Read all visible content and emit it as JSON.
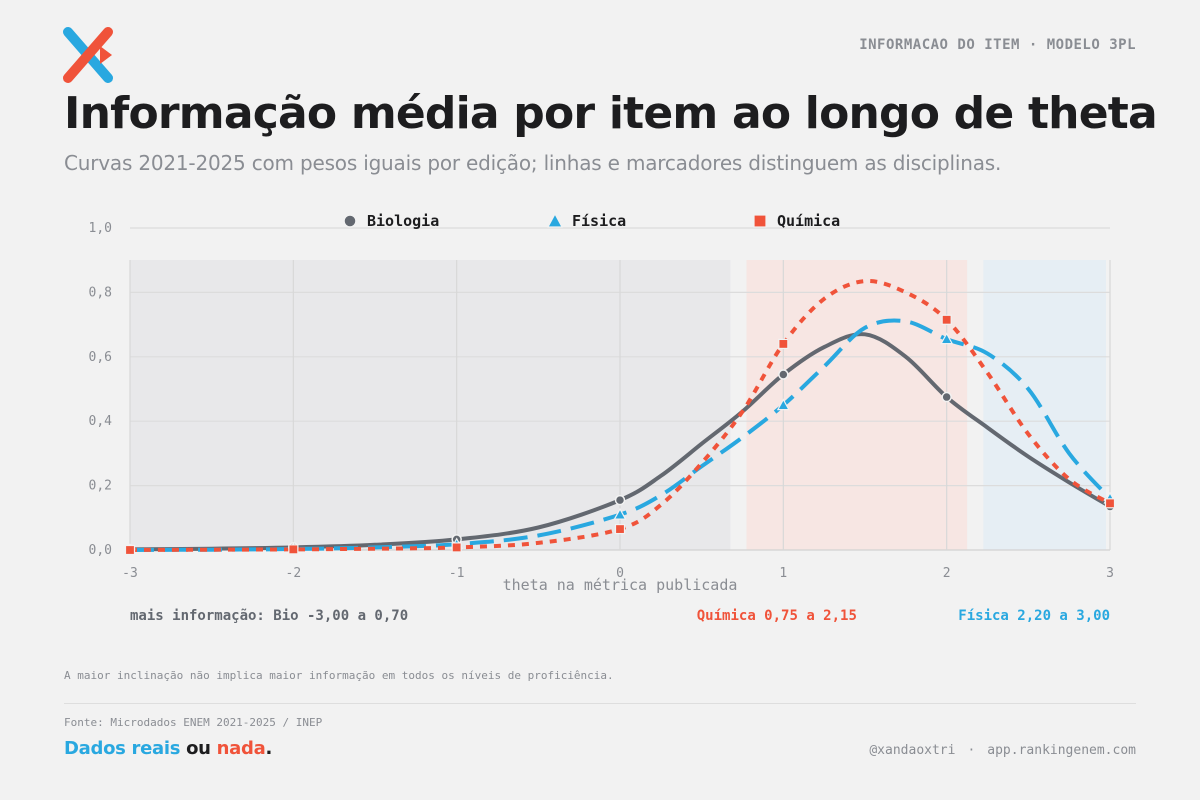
{
  "header": {
    "kicker": "INFORMACAO DO ITEM · MODELO 3PL",
    "title": "Informação média por item ao longo de theta",
    "subtitle": "Curvas 2021-2025 com pesos iguais por edição; linhas e marcadores distinguem as disciplinas."
  },
  "colors": {
    "biologia": "#636870",
    "fisica": "#29a8e0",
    "quimica": "#f0533a",
    "band_bio": "#e8e8ea",
    "band_quimica": "#f7e6e3",
    "band_fisica": "#e6eef4"
  },
  "chart_data": {
    "type": "line",
    "xlabel": "theta na métrica publicada",
    "ylabel": "",
    "xlim": [
      -3,
      3
    ],
    "ylim": [
      0,
      1
    ],
    "x_ticks": [
      "-3",
      "-2",
      "-1",
      "0",
      "1",
      "2",
      "3"
    ],
    "y_ticks": [
      "0,0",
      "0,2",
      "0,4",
      "0,6",
      "0,8",
      "1,0"
    ],
    "grid": true,
    "legend_position": "top",
    "series": [
      {
        "name": "Biologia",
        "marker": "circle",
        "line": "solid",
        "color": "#636870",
        "curve": [
          [
            -3,
            0.002
          ],
          [
            -2.5,
            0.004
          ],
          [
            -2,
            0.008
          ],
          [
            -1.5,
            0.016
          ],
          [
            -1,
            0.033
          ],
          [
            -0.5,
            0.07
          ],
          [
            0,
            0.155
          ],
          [
            0.25,
            0.23
          ],
          [
            0.5,
            0.33
          ],
          [
            0.75,
            0.43
          ],
          [
            1,
            0.545
          ],
          [
            1.25,
            0.63
          ],
          [
            1.5,
            0.67
          ],
          [
            1.75,
            0.6
          ],
          [
            2,
            0.475
          ],
          [
            2.25,
            0.38
          ],
          [
            2.5,
            0.29
          ],
          [
            2.75,
            0.21
          ],
          [
            3,
            0.135
          ]
        ],
        "markers": [
          [
            -3,
            0.002
          ],
          [
            -2,
            0.008
          ],
          [
            -1,
            0.033
          ],
          [
            0,
            0.155
          ],
          [
            1,
            0.545
          ],
          [
            2,
            0.475
          ],
          [
            3,
            0.135
          ]
        ]
      },
      {
        "name": "Física",
        "marker": "triangle",
        "line": "dashed",
        "color": "#29a8e0",
        "curve": [
          [
            -3,
            0.0
          ],
          [
            -2.5,
            0.001
          ],
          [
            -2,
            0.003
          ],
          [
            -1.5,
            0.008
          ],
          [
            -1,
            0.018
          ],
          [
            -0.5,
            0.045
          ],
          [
            0,
            0.11
          ],
          [
            0.25,
            0.17
          ],
          [
            0.5,
            0.26
          ],
          [
            0.75,
            0.35
          ],
          [
            1,
            0.45
          ],
          [
            1.25,
            0.57
          ],
          [
            1.5,
            0.69
          ],
          [
            1.75,
            0.71
          ],
          [
            2,
            0.655
          ],
          [
            2.25,
            0.61
          ],
          [
            2.5,
            0.5
          ],
          [
            2.75,
            0.3
          ],
          [
            3,
            0.16
          ]
        ],
        "markers": [
          [
            -3,
            0.0
          ],
          [
            -2,
            0.003
          ],
          [
            -1,
            0.018
          ],
          [
            0,
            0.11
          ],
          [
            1,
            0.45
          ],
          [
            2,
            0.655
          ],
          [
            3,
            0.16
          ]
        ]
      },
      {
        "name": "Química",
        "marker": "square",
        "line": "dotted",
        "color": "#f0533a",
        "curve": [
          [
            -3,
            0.0
          ],
          [
            -2.5,
            0.001
          ],
          [
            -2,
            0.002
          ],
          [
            -1.5,
            0.004
          ],
          [
            -1,
            0.008
          ],
          [
            -0.5,
            0.022
          ],
          [
            0,
            0.065
          ],
          [
            0.25,
            0.14
          ],
          [
            0.5,
            0.27
          ],
          [
            0.75,
            0.43
          ],
          [
            1,
            0.64
          ],
          [
            1.25,
            0.78
          ],
          [
            1.5,
            0.835
          ],
          [
            1.75,
            0.8
          ],
          [
            2,
            0.715
          ],
          [
            2.25,
            0.55
          ],
          [
            2.5,
            0.36
          ],
          [
            2.75,
            0.22
          ],
          [
            3,
            0.145
          ]
        ],
        "markers": [
          [
            -3,
            0.0
          ],
          [
            -2,
            0.002
          ],
          [
            -1,
            0.008
          ],
          [
            0,
            0.065
          ],
          [
            1,
            0.64
          ],
          [
            2,
            0.715
          ],
          [
            3,
            0.145
          ]
        ]
      }
    ],
    "bands": [
      {
        "series": "Biologia",
        "from": -3.0,
        "to": 0.7,
        "label": "mais informação: Bio -3,00 a 0,70"
      },
      {
        "series": "Química",
        "from": 0.75,
        "to": 2.15,
        "label": "Química 0,75 a 2,15"
      },
      {
        "series": "Física",
        "from": 2.2,
        "to": 3.0,
        "label": "Física 2,20 a 3,00"
      }
    ]
  },
  "footer": {
    "footnote": "A maior inclinação não implica maior informação em todos os níveis de proficiência.",
    "source": "Fonte: Microdados ENEM 2021-2025 / INEP",
    "brand": {
      "part1": "Dados reais",
      "part2": "ou",
      "part3": "nada",
      "part4": "."
    },
    "handle": "@xandaoxtri",
    "separator": "·",
    "site": "app.rankingenem.com"
  }
}
